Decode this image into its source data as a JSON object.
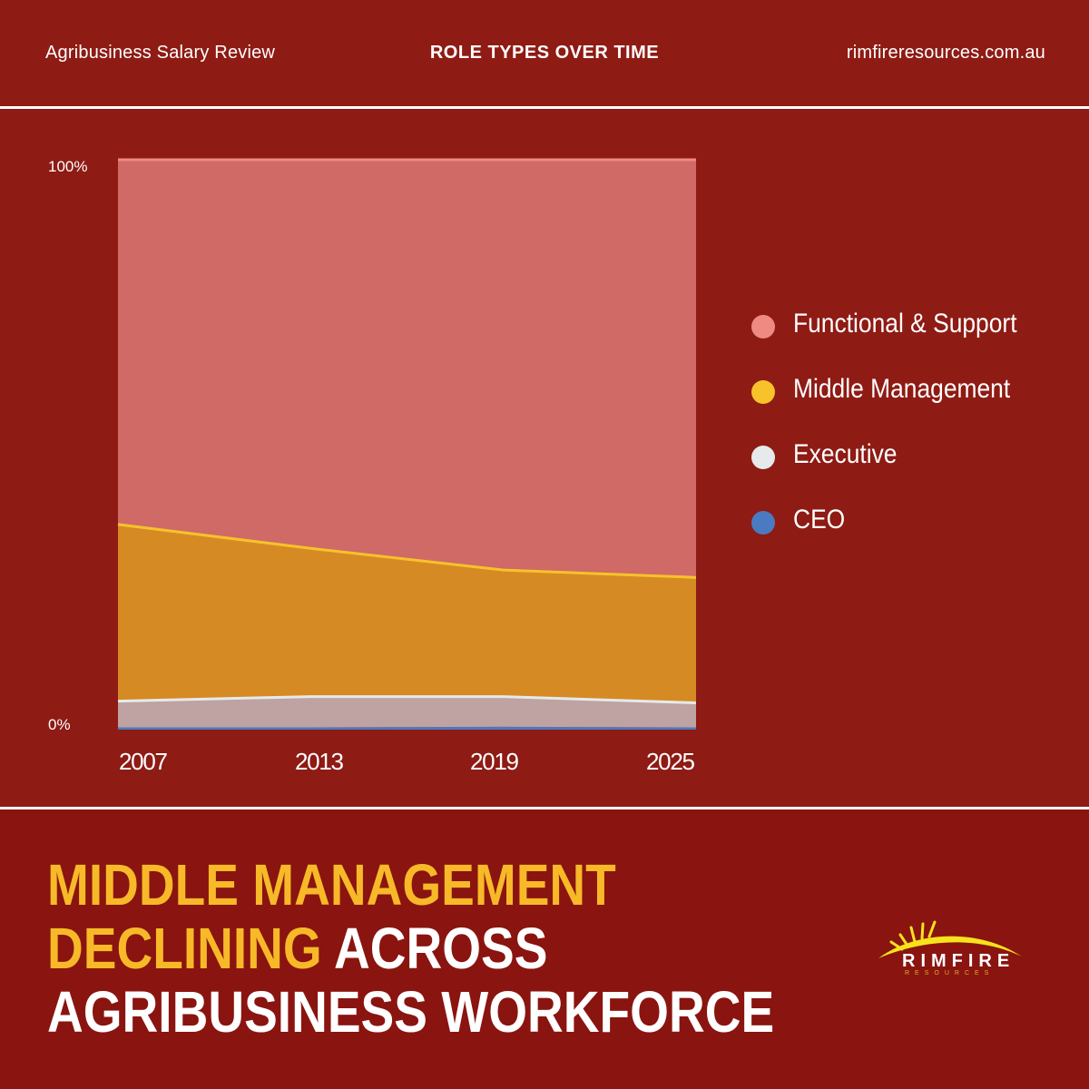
{
  "header": {
    "left": "Agribusiness Salary Review",
    "center": "ROLE TYPES OVER TIME",
    "right": "rimfireresources.com.au"
  },
  "colors": {
    "background": "#8e1b14",
    "footer_background": "#8a1410",
    "functional": "#cf6a66",
    "functional_legend": "#ef8a82",
    "middle_fill": "#d68a24",
    "middle_line": "#f7c22a",
    "executive_fill": "#bfa2a2",
    "executive_line": "#e6eaea",
    "ceo": "#4a7abf",
    "accent_yellow": "#f7b928"
  },
  "chart_data": {
    "type": "area",
    "stacked": true,
    "x": [
      2007,
      2013,
      2019,
      2025
    ],
    "y_ticks": [
      "100%",
      "0%"
    ],
    "ylim": [
      0,
      100
    ],
    "series": [
      {
        "name": "CEO",
        "values": [
          0.4,
          0.4,
          0.5,
          0.4
        ]
      },
      {
        "name": "Executive",
        "values": [
          4.6,
          5.4,
          5.3,
          4.3
        ]
      },
      {
        "name": "Middle Management",
        "values": [
          31.0,
          26.0,
          22.2,
          22.0
        ]
      },
      {
        "name": "Functional & Support",
        "values": [
          64.0,
          68.2,
          72.0,
          73.3
        ]
      }
    ],
    "legend": [
      "Functional & Support",
      "Middle Management",
      "Executive",
      "CEO"
    ],
    "legend_position": "right",
    "grid": false
  },
  "headline": {
    "line1": "MIDDLE MANAGEMENT",
    "line2_accent": "DECLINING",
    "line2_rest": " ACROSS",
    "line3": "AGRIBUSINESS WORKFORCE"
  },
  "logo": {
    "name": "RIMFIRE",
    "sub": "RESOURCES"
  }
}
